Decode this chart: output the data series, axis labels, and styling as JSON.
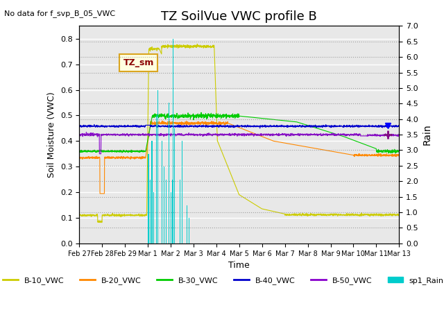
{
  "title": "TZ SoilVue VWC profile B",
  "no_data_text": "No data for f_svp_B_05_VWC",
  "xlabel": "Time",
  "ylabel": "Soil Moisture (VWC)",
  "ylabel_right": "Rain",
  "legend_box_label": "TZ_sm",
  "xlim_days": [
    0,
    14
  ],
  "ylim": [
    0.0,
    0.85
  ],
  "ylim_right": [
    0.0,
    7.0
  ],
  "yticks_right": [
    0.0,
    0.5,
    1.0,
    1.5,
    2.0,
    2.5,
    3.0,
    3.5,
    4.0,
    4.5,
    5.0,
    5.5,
    6.0,
    6.5,
    7.0
  ],
  "yticks_left": [
    0.0,
    0.1,
    0.2,
    0.3,
    0.4,
    0.5,
    0.6,
    0.7,
    0.8
  ],
  "colors": {
    "B10": "#cccc00",
    "B20": "#ff8800",
    "B30": "#00cc00",
    "B40": "#0000cc",
    "B50": "#8800cc",
    "rain": "#00cccc"
  },
  "background_color": "#e8e8e8",
  "grid_color": "#ffffff"
}
